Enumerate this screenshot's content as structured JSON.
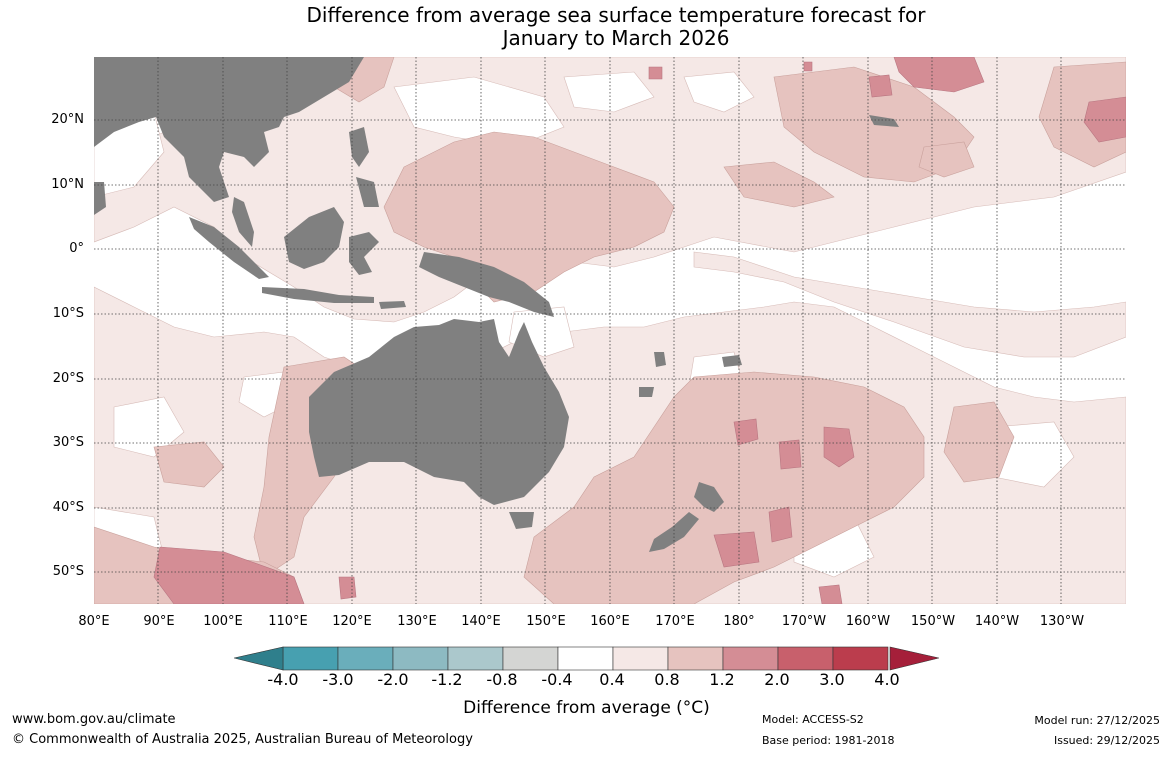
{
  "title": {
    "line1": "Difference from average sea surface temperature forecast for",
    "line2": "January to March 2026"
  },
  "axes": {
    "lat_labels": [
      "20°N",
      "10°N",
      "0°",
      "10°S",
      "20°S",
      "30°S",
      "40°S",
      "50°S"
    ],
    "lon_labels": [
      "80°E",
      "90°E",
      "100°E",
      "110°E",
      "120°E",
      "130°E",
      "140°E",
      "150°E",
      "160°E",
      "170°E",
      "180°",
      "170°W",
      "160°W",
      "150°W",
      "140°W",
      "130°W"
    ]
  },
  "colorbar": {
    "tick_labels": [
      "-4.0",
      "-3.0",
      "-2.0",
      "-1.2",
      "-0.8",
      "-0.4",
      "0.4",
      "0.8",
      "1.2",
      "2.0",
      "3.0",
      "4.0"
    ],
    "colors": [
      "#2f7f8c",
      "#47a0b0",
      "#6aaebb",
      "#8dbac2",
      "#abc8cc",
      "#d4d5d3",
      "#ffffff",
      "#f5e8e6",
      "#e6c3bf",
      "#d48d95",
      "#c8606c",
      "#bb3d4d",
      "#a51f3a"
    ],
    "label": "Difference from average (°C)"
  },
  "footer": {
    "url": "www.bom.gov.au/climate",
    "copyright": "© Commonwealth of Australia 2025, Australian Bureau of Meteorology",
    "model": "Model: ACCESS-S2",
    "base_period": "Base period: 1981-2018",
    "model_run": "Model run: 27/12/2025",
    "issued": "Issued: 29/12/2025"
  },
  "map_colors": {
    "land": "#808080",
    "water_neutral": "#ffffff",
    "anom_04_08": "#f5e8e6",
    "anom_08_12": "#e6c3bf",
    "anom_12_20": "#d48d95",
    "anom_20_30": "#c8606c"
  }
}
